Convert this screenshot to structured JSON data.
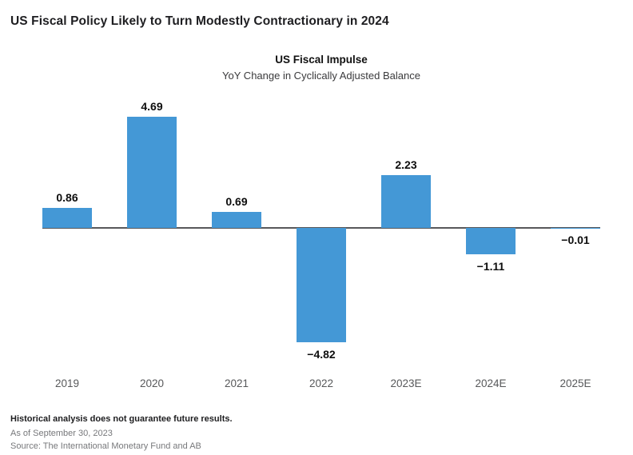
{
  "page": {
    "heading": "US Fiscal Policy Likely to Turn Modestly Contractionary in 2024"
  },
  "chart_data": {
    "type": "bar",
    "title": "US Fiscal Impulse",
    "subtitle": "YoY Change in Cyclically Adjusted Balance",
    "categories": [
      "2019",
      "2020",
      "2021",
      "2022",
      "2023E",
      "2024E",
      "2025E"
    ],
    "values": [
      0.86,
      4.69,
      0.69,
      -4.82,
      2.23,
      -1.11,
      -0.01
    ],
    "value_labels": [
      "0.86",
      "4.69",
      "0.69",
      "−4.82",
      "2.23",
      "−1.11",
      "−0.01"
    ],
    "bar_color": "#4498d6",
    "axis_color": "#58585a",
    "ylim": [
      -5.5,
      5.5
    ],
    "grid": false,
    "legend": "none",
    "value_labels_bold": true
  },
  "footer": {
    "disclaimer": "Historical analysis does not guarantee future results.",
    "as_of": "As of September 30, 2023",
    "source": "Source: The International Monetary Fund and AB"
  }
}
